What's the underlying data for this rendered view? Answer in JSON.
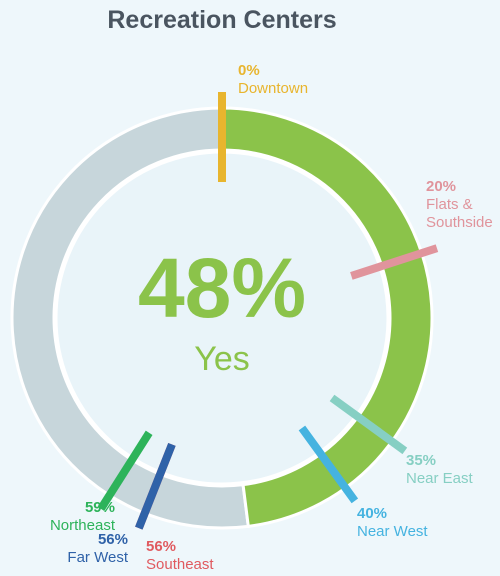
{
  "chart_data": {
    "type": "donut",
    "title": "Recreation Centers",
    "value": 48,
    "value_label": "48%",
    "label": "Yes",
    "color": "#8bc34a",
    "rest_color": "#c7d6db",
    "markers": {
      "categories": [
        "Downtown",
        "Flats & Southside",
        "Near East",
        "Near West",
        "Southeast",
        "Far West",
        "Northeast"
      ],
      "values": [
        0,
        20,
        35,
        40,
        56,
        56,
        59
      ],
      "value_labels": [
        "0%",
        "20%",
        "35%",
        "40%",
        "56%",
        "56%",
        "59%"
      ],
      "colors": [
        "#e8b52e",
        "#e0949c",
        "#86cfc3",
        "#45b3e0",
        "#e05a5f",
        "#2f62a8",
        "#2db35a"
      ]
    }
  }
}
